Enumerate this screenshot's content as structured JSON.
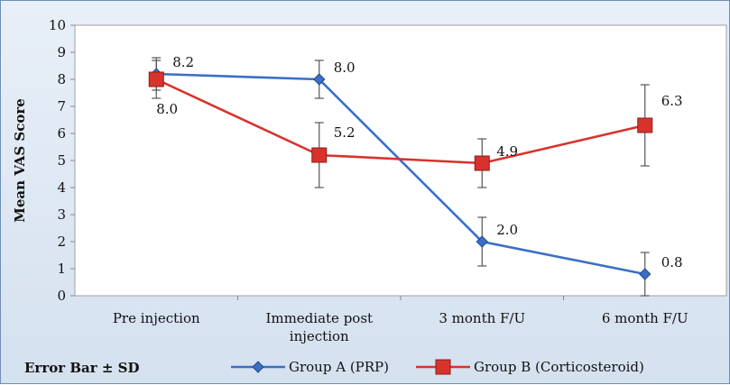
{
  "chart_data": {
    "type": "line",
    "ylabel": "Mean VAS Score",
    "ylim": [
      0,
      10
    ],
    "yticks": [
      0,
      1,
      2,
      3,
      4,
      5,
      6,
      7,
      8,
      9,
      10
    ],
    "categories": [
      [
        "Pre injection"
      ],
      [
        "Immediate post",
        "injection"
      ],
      [
        "3 month F/U"
      ],
      [
        "6 month F/U"
      ]
    ],
    "series": [
      {
        "name": "Group A (PRP)",
        "color": "#3a6fc4",
        "marker": "diamond",
        "values": [
          8.2,
          8.0,
          2.0,
          0.8
        ],
        "labels": [
          "8.2",
          "8.0",
          "2.0",
          "0.8"
        ],
        "sd": [
          0.6,
          0.7,
          0.9,
          0.8
        ]
      },
      {
        "name": "Group B (Corticosteroid)",
        "color": "#d8322c",
        "marker": "square",
        "values": [
          8.0,
          5.2,
          4.9,
          6.3
        ],
        "labels": [
          "8.0",
          "5.2",
          "4.9",
          "6.3"
        ],
        "sd": [
          0.7,
          1.2,
          0.9,
          1.5
        ]
      }
    ],
    "legend": {
      "note": "Error Bar ± SD",
      "placement": "bottom"
    },
    "grid": false
  }
}
